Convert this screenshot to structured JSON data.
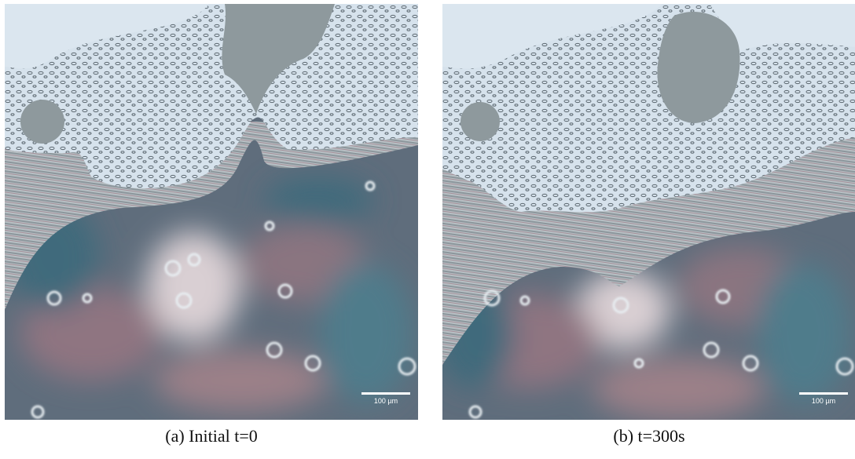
{
  "panels": [
    {
      "scale_bar": "100 µm",
      "caption": "(a) Initial t=0"
    },
    {
      "scale_bar": "100 µm",
      "caption": "(b) t=300s"
    }
  ]
}
